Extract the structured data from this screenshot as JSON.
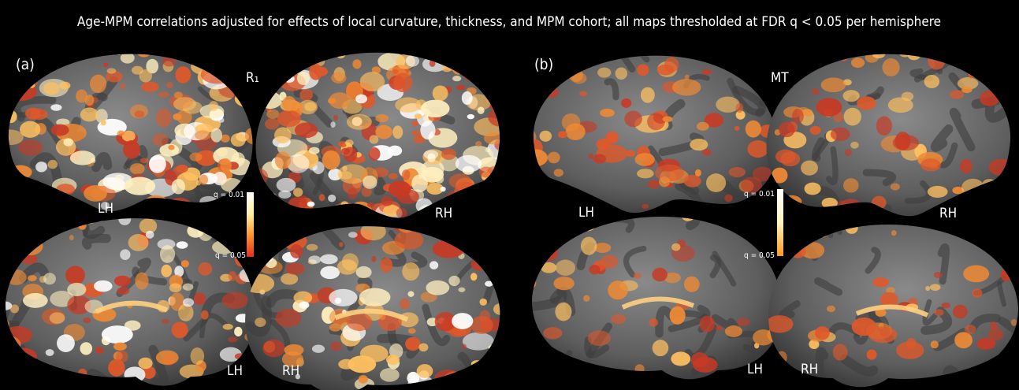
{
  "title": "Age-MPM correlations adjusted for effects of local curvature, thickness, and MPM cohort; all maps thresholded at FDR q < 0.05 per hemisphere",
  "panels": [
    {
      "label": "(a)",
      "map": "R₁",
      "lateral_left": "LH",
      "lateral_right": "RH",
      "medial_left": "LH",
      "medial_right": "RH",
      "colorbar_top": "q = 0.01",
      "colorbar_bottom": "q = 0.05"
    },
    {
      "label": "(b)",
      "map": "MT",
      "lateral_left": "LH",
      "lateral_right": "RH",
      "medial_left": "LH",
      "medial_right": "RH",
      "colorbar_top": "q = 0.01",
      "colorbar_bottom": "q = 0.05"
    }
  ]
}
